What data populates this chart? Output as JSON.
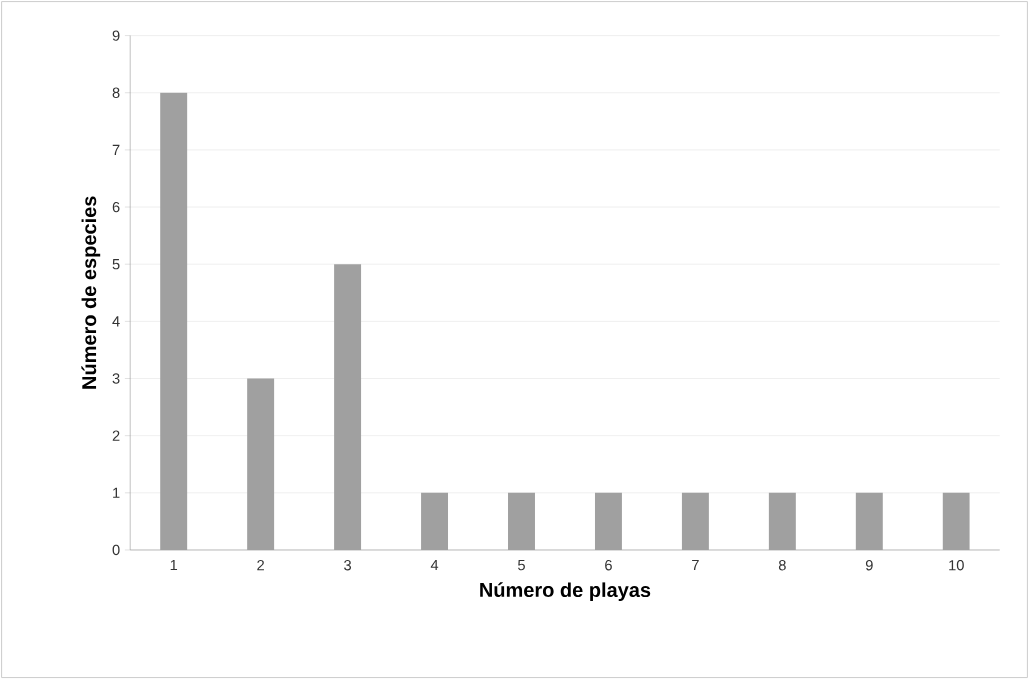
{
  "chart_data": {
    "type": "bar",
    "xlabel": "Número de playas",
    "ylabel": "Número de especies",
    "categories": [
      "1",
      "2",
      "3",
      "4",
      "5",
      "6",
      "7",
      "8",
      "9",
      "10"
    ],
    "values": [
      8,
      3,
      5,
      1,
      1,
      1,
      1,
      1,
      1,
      1
    ],
    "color": "#a0a0a0",
    "ylim": [
      0,
      9
    ],
    "yticks": [
      0,
      1,
      2,
      3,
      4,
      5,
      6,
      7,
      8,
      9
    ],
    "grid": "y"
  }
}
